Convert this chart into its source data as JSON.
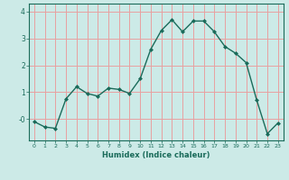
{
  "x": [
    0,
    1,
    2,
    3,
    4,
    5,
    6,
    7,
    8,
    9,
    10,
    11,
    12,
    13,
    14,
    15,
    16,
    17,
    18,
    19,
    20,
    21,
    22,
    23
  ],
  "y": [
    -0.1,
    -0.3,
    -0.35,
    0.75,
    1.2,
    0.95,
    0.85,
    1.15,
    1.1,
    0.95,
    1.5,
    2.6,
    3.3,
    3.7,
    3.25,
    3.65,
    3.65,
    3.25,
    2.7,
    2.45,
    2.1,
    0.7,
    -0.55,
    -0.15
  ],
  "xlabel": "Humidex (Indice chaleur)",
  "ylabel": "",
  "ylim": [
    -0.8,
    4.3
  ],
  "xlim": [
    -0.5,
    23.5
  ],
  "bg_color": "#cceae7",
  "grid_color": "#e8a0a0",
  "line_color": "#1a6b5a",
  "marker_color": "#1a6b5a",
  "yticks": [
    0,
    1,
    2,
    3,
    4
  ],
  "ytick_labels": [
    "-0",
    "1",
    "2",
    "3",
    "4"
  ],
  "xticks": [
    0,
    1,
    2,
    3,
    4,
    5,
    6,
    7,
    8,
    9,
    10,
    11,
    12,
    13,
    14,
    15,
    16,
    17,
    18,
    19,
    20,
    21,
    22,
    23
  ]
}
